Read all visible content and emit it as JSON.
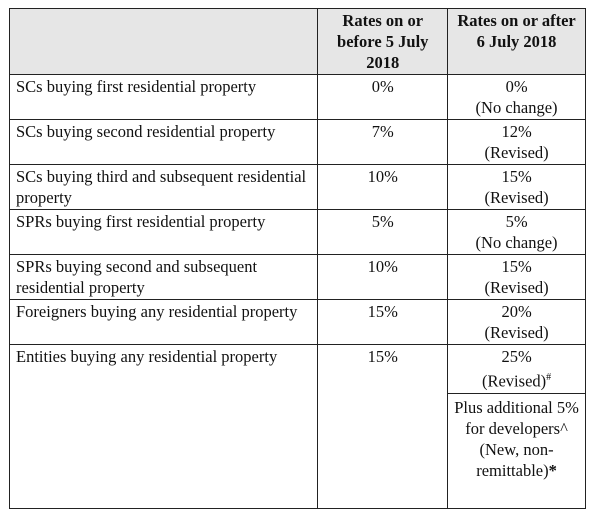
{
  "table": {
    "header": {
      "before": "Rates on or before 5 July 2018",
      "after": "Rates on or after 6 July 2018"
    },
    "rows": [
      {
        "label": "SCs buying first residential property",
        "before": "0%",
        "after": "0%",
        "note": "(No change)"
      },
      {
        "label": "SCs buying second residential property",
        "before": "7%",
        "after": "12%",
        "note": "(Revised)"
      },
      {
        "label": "SCs buying third and subsequent residential property",
        "before": "10%",
        "after": "15%",
        "note": "(Revised)"
      },
      {
        "label": "SPRs buying first residential property",
        "before": "5%",
        "after": "5%",
        "note": "(No change)"
      },
      {
        "label": "SPRs buying second and subsequent residential property",
        "before": "10%",
        "after": "15%",
        "note": "(Revised)"
      },
      {
        "label": "Foreigners buying any residential property",
        "before": "15%",
        "after": "20%",
        "note": "(Revised)"
      },
      {
        "label": "Entities buying any residential property",
        "before": "15%",
        "after": "25%",
        "note": "(Revised)",
        "note_mark": "#",
        "extra": "Plus additional 5% for developers^ (New, non-remittable)",
        "extra_mark": "*"
      }
    ]
  }
}
